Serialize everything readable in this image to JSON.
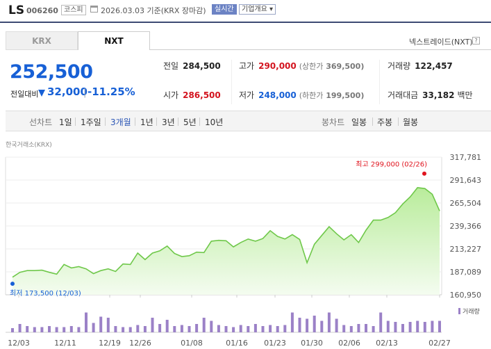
{
  "stock": {
    "name": "LS",
    "code": "006260",
    "market": "코스피",
    "date_text": "2026.03.03  기준(KRX 장마감)",
    "realtime_label": "실시간",
    "corp_info_label": "기업개요 ▾"
  },
  "tabs": {
    "krx": "KRX",
    "nxt": "NXT",
    "nxt_name": "넥스트레이드(NXT)",
    "help": "?"
  },
  "price": {
    "current": "252,500",
    "change_label": "전일대비",
    "change_value": "32,000",
    "change_percent": "-11.25%",
    "direction": "down"
  },
  "stats": {
    "prev_close_label": "전일",
    "prev_close": "284,500",
    "high_label": "고가",
    "high": "290,000",
    "upper_limit_label": "(상한가",
    "upper_limit": "369,500)",
    "volume_label": "거래량",
    "volume": "122,457",
    "open_label": "시가",
    "open": "286,500",
    "low_label": "저가",
    "low": "248,000",
    "lower_limit_label": "(하한가",
    "lower_limit": "199,500)",
    "value_label": "거래대금",
    "value": "33,182",
    "value_unit": "백만"
  },
  "periods": {
    "line_chart": "선차트",
    "items": [
      "1일",
      "1주일",
      "3개월",
      "1년",
      "3년",
      "5년",
      "10년"
    ],
    "selected": "3개월",
    "candle_chart": "봉차트",
    "candles": [
      "일봉",
      "주봉",
      "월봉"
    ]
  },
  "chart_source": "한국거래소(KRX)",
  "chart_data": {
    "type": "area",
    "y_ticks": [
      "317,781",
      "291,643",
      "265,504",
      "239,366",
      "213,227",
      "187,089",
      "160,950"
    ],
    "ylim": [
      160950,
      317781
    ],
    "x_ticks": [
      "12/03",
      "12/11",
      "12/19",
      "12/26",
      "01/08",
      "01/16",
      "01/23",
      "01/30",
      "02/06",
      "02/13",
      "02/27"
    ],
    "max_annotation": "최고 299,000 (02/26)",
    "min_annotation": "최저 173,500 (12/03)",
    "volume_label": "거래량",
    "price_values": [
      181000,
      186500,
      188500,
      188500,
      189000,
      186500,
      184500,
      195500,
      191500,
      193000,
      190500,
      185000,
      188500,
      190500,
      187500,
      196000,
      195500,
      208500,
      201000,
      208500,
      211000,
      216500,
      208000,
      204500,
      205500,
      209500,
      209000,
      222000,
      223000,
      222500,
      215500,
      220500,
      224500,
      222000,
      225000,
      234000,
      227500,
      224500,
      229500,
      224000,
      197500,
      218500,
      228500,
      238500,
      230500,
      223500,
      229500,
      220500,
      234500,
      246000,
      246000,
      249000,
      254500,
      264500,
      272500,
      283000,
      282000,
      275500,
      256500
    ],
    "volume_values": [
      0.2,
      0.4,
      0.3,
      0.25,
      0.25,
      0.3,
      0.25,
      0.25,
      0.3,
      0.25,
      0.95,
      0.45,
      0.75,
      0.7,
      0.3,
      0.25,
      0.25,
      0.35,
      0.3,
      0.7,
      0.4,
      0.6,
      0.3,
      0.35,
      0.3,
      0.4,
      0.7,
      0.55,
      0.35,
      0.3,
      0.25,
      0.35,
      0.3,
      0.4,
      0.3,
      0.35,
      0.3,
      0.35,
      0.95,
      0.7,
      0.65,
      0.8,
      0.55,
      0.95,
      0.65,
      0.35,
      0.3,
      0.4,
      0.4,
      0.3,
      0.95,
      0.55,
      0.5,
      0.4,
      0.5,
      0.55,
      0.5,
      0.55,
      0.55
    ],
    "max_point": 299000,
    "min_point": 173500,
    "colors": {
      "line": "#6fc84a",
      "fill_top": "#b9ec9b",
      "fill_bottom": "#f4fcf0",
      "volume": "#9b81c7",
      "max": "#e0141e",
      "min": "#1760d6"
    }
  }
}
